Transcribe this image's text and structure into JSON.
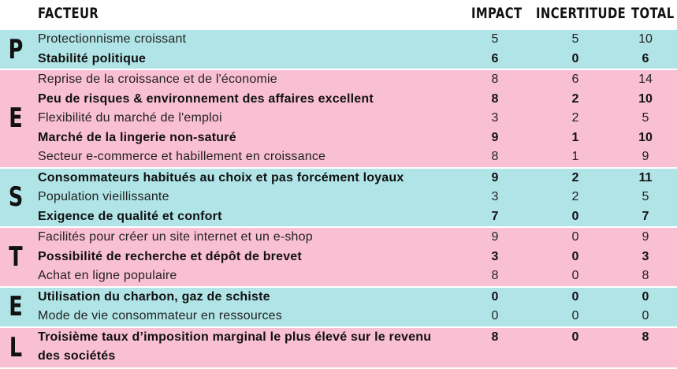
{
  "headers": {
    "factor": "FACTEUR",
    "impact": "IMPACT",
    "uncertainty": "INCERTITUDE",
    "total": "TOTAL"
  },
  "groups": [
    {
      "letter": "P",
      "color": "#b0e4e6",
      "rows": [
        {
          "factor": "Protectionnisme croissant",
          "impact": "5",
          "uncertainty": "5",
          "total": "10",
          "bold": false
        },
        {
          "factor": "Stabilité politique",
          "impact": "6",
          "uncertainty": "0",
          "total": "6",
          "bold": true
        }
      ]
    },
    {
      "letter": "E",
      "color": "#f9bfd2",
      "rows": [
        {
          "factor": "Reprise de la croissance et de l'économie",
          "impact": "8",
          "uncertainty": "6",
          "total": "14",
          "bold": false
        },
        {
          "factor": "Peu de risques & environnement des affaires excellent",
          "impact": "8",
          "uncertainty": "2",
          "total": "10",
          "bold": true
        },
        {
          "factor": "Flexibilité du marché de l'emploi",
          "impact": "3",
          "uncertainty": "2",
          "total": "5",
          "bold": false
        },
        {
          "factor": "Marché de la lingerie non-saturé",
          "impact": "9",
          "uncertainty": "1",
          "total": "10",
          "bold": true
        },
        {
          "factor": "Secteur e-commerce et habillement en croissance",
          "impact": "8",
          "uncertainty": "1",
          "total": "9",
          "bold": false
        }
      ]
    },
    {
      "letter": "S",
      "color": "#b0e4e6",
      "rows": [
        {
          "factor": "Consommateurs habitués au choix et pas forcément loyaux",
          "impact": "9",
          "uncertainty": "2",
          "total": "11",
          "bold": true
        },
        {
          "factor": "Population vieillissante",
          "impact": "3",
          "uncertainty": "2",
          "total": "5",
          "bold": false
        },
        {
          "factor": "Exigence de qualité et confort",
          "impact": "7",
          "uncertainty": "0",
          "total": "7",
          "bold": true
        }
      ]
    },
    {
      "letter": "T",
      "color": "#f9bfd2",
      "rows": [
        {
          "factor": "Facilités pour créer un site internet et un e-shop",
          "impact": "9",
          "uncertainty": "0",
          "total": "9",
          "bold": false
        },
        {
          "factor": "Possibilité de recherche et dépôt de brevet",
          "impact": "3",
          "uncertainty": "0",
          "total": "3",
          "bold": true
        },
        {
          "factor": "Achat en ligne populaire",
          "impact": "8",
          "uncertainty": "0",
          "total": "8",
          "bold": false
        }
      ]
    },
    {
      "letter": "E",
      "color": "#b0e4e6",
      "rows": [
        {
          "factor": "Utilisation du charbon, gaz de schiste",
          "impact": "0",
          "uncertainty": "0",
          "total": "0",
          "bold": true
        },
        {
          "factor": "Mode de vie consommateur en ressources",
          "impact": "0",
          "uncertainty": "0",
          "total": "0",
          "bold": false
        }
      ]
    },
    {
      "letter": "L",
      "color": "#f9bfd2",
      "rows": [
        {
          "factor": "Troisième taux d’imposition marginal le plus élevé sur le revenu des sociétés",
          "impact": "8",
          "uncertainty": "0",
          "total": "8",
          "bold": true,
          "tall": true
        }
      ]
    }
  ]
}
